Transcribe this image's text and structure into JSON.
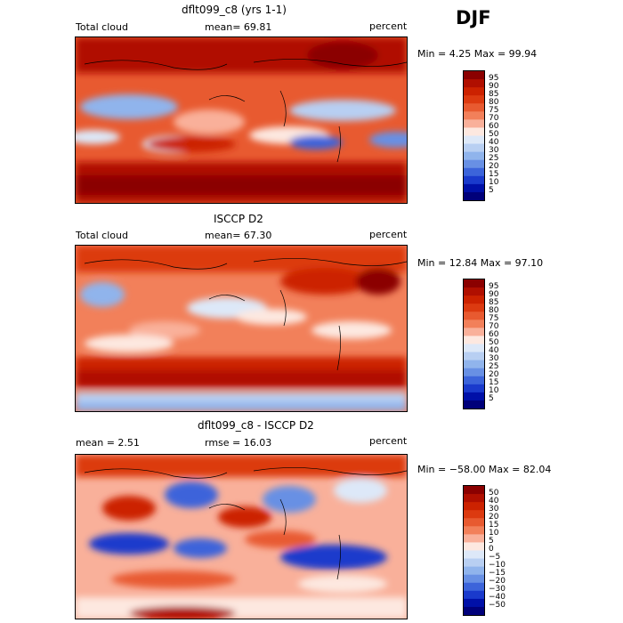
{
  "season": "DJF",
  "panels": [
    {
      "title": "dflt099_c8 (yrs 1-1)",
      "left_label": "Total cloud",
      "center_label": "mean=  69.81",
      "right_label": "percent",
      "minmax": "Min =    4.25 Max =  99.94"
    },
    {
      "title": "ISCCP D2",
      "left_label": "Total cloud",
      "center_label": "mean=  67.30",
      "right_label": "percent",
      "minmax": "Min =  12.84 Max =  97.10"
    },
    {
      "title": "dflt099_c8 - ISCCP D2",
      "left_label": "mean =    2.51",
      "center_label": "rmse =  16.03",
      "right_label": "percent",
      "minmax": "Min = −58.00 Max =  82.04"
    }
  ],
  "colorbars": [
    {
      "labels": [
        "95",
        "90",
        "85",
        "80",
        "75",
        "70",
        "60",
        "50",
        "40",
        "30",
        "25",
        "20",
        "15",
        "10",
        "5"
      ],
      "colors": [
        "#8b0000",
        "#b00f00",
        "#cc2200",
        "#dc3a10",
        "#e85a30",
        "#f2805a",
        "#f9b09a",
        "#fde8e0",
        "#dde8f8",
        "#b8cff2",
        "#90b4ec",
        "#6890e4",
        "#3c64da",
        "#1a3acc",
        "#0010a8",
        "#00007a"
      ]
    },
    {
      "labels": [
        "95",
        "90",
        "85",
        "80",
        "75",
        "70",
        "60",
        "50",
        "40",
        "30",
        "25",
        "20",
        "15",
        "10",
        "5"
      ],
      "colors": [
        "#8b0000",
        "#b00f00",
        "#cc2200",
        "#dc3a10",
        "#e85a30",
        "#f2805a",
        "#f9b09a",
        "#fde8e0",
        "#dde8f8",
        "#b8cff2",
        "#90b4ec",
        "#6890e4",
        "#3c64da",
        "#1a3acc",
        "#0010a8",
        "#00007a"
      ]
    },
    {
      "labels": [
        "50",
        "40",
        "30",
        "20",
        "15",
        "10",
        "5",
        "0",
        "−5",
        "−10",
        "−15",
        "−20",
        "−30",
        "−40",
        "−50"
      ],
      "colors": [
        "#8b0000",
        "#b00f00",
        "#cc2200",
        "#dc3a10",
        "#e85a30",
        "#f2805a",
        "#f9b09a",
        "#fde8e0",
        "#dde8f8",
        "#b8cff2",
        "#90b4ec",
        "#6890e4",
        "#3c64da",
        "#1a3acc",
        "#0010a8",
        "#00007a"
      ]
    }
  ],
  "chart_data": [
    {
      "type": "heatmap",
      "title": "dflt099_c8 (yrs 1-1)",
      "variable": "Total cloud",
      "units": "percent",
      "mean": 69.81,
      "min": 4.25,
      "max": 99.94,
      "contour_levels": [
        5,
        10,
        15,
        20,
        25,
        30,
        40,
        50,
        60,
        70,
        75,
        80,
        85,
        90,
        95
      ]
    },
    {
      "type": "heatmap",
      "title": "ISCCP D2",
      "variable": "Total cloud",
      "units": "percent",
      "mean": 67.3,
      "min": 12.84,
      "max": 97.1,
      "contour_levels": [
        5,
        10,
        15,
        20,
        25,
        30,
        40,
        50,
        60,
        70,
        75,
        80,
        85,
        90,
        95
      ]
    },
    {
      "type": "heatmap",
      "title": "dflt099_c8 - ISCCP D2",
      "units": "percent",
      "mean": 2.51,
      "rmse": 16.03,
      "min": -58.0,
      "max": 82.04,
      "contour_levels": [
        -50,
        -40,
        -30,
        -20,
        -15,
        -10,
        -5,
        0,
        5,
        10,
        15,
        20,
        30,
        40,
        50
      ]
    }
  ]
}
